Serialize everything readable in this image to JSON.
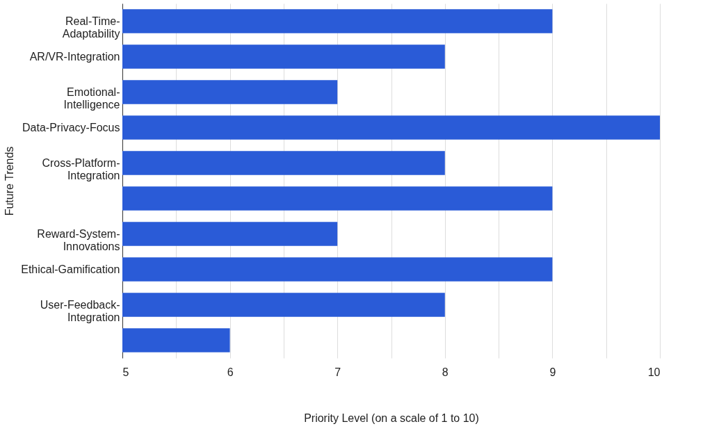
{
  "chart_data": {
    "type": "bar",
    "orientation": "horizontal",
    "xlabel": "Priority Level (on a scale of 1 to 10)",
    "ylabel": "Future Trends",
    "categories": [
      "Real-Time-Adaptability",
      "AR/VR-Integration",
      "Emotional-Intelligence",
      "Data-Privacy-Focus",
      "Cross-Platform-Integration",
      null,
      "Reward-System-Innovations",
      "Ethical-Gamification",
      "User-Feedback-Integration",
      null
    ],
    "values": [
      9,
      8,
      7,
      10,
      8,
      9,
      7,
      9,
      8,
      6
    ],
    "color": "#2a5bd7",
    "xlim": [
      5,
      10
    ],
    "xticks": [
      5,
      {
        "value": 5.5,
        "label": null
      },
      6,
      {
        "value": 6.5,
        "label": null
      },
      7,
      {
        "value": 7.5,
        "label": null
      },
      8,
      {
        "value": 8.5,
        "label": null
      },
      9,
      {
        "value": 9.5,
        "label": null
      },
      10
    ],
    "grid": true
  }
}
